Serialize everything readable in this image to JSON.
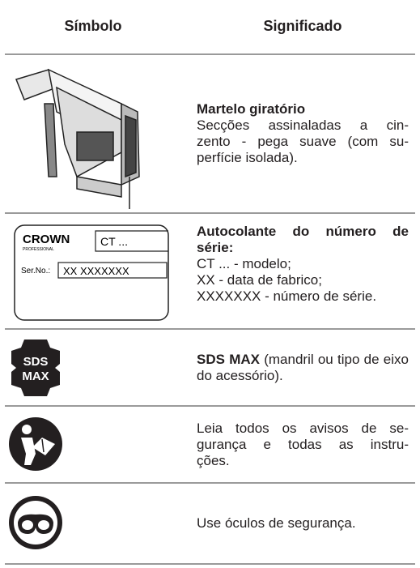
{
  "header": {
    "symbol": "Símbolo",
    "meaning": "Significado"
  },
  "rows": [
    {
      "title": "Martelo giratório",
      "lines": [
        "Secções assinaladas a cin-",
        "zento - pega suave (com su-",
        "perfície isolada)."
      ]
    },
    {
      "label": {
        "brand": "CROWN",
        "sub": "PROFESSIONAL",
        "model": "CT ...",
        "serial_caption": "Ser.No.:",
        "serial": "XX XXXXXXX"
      },
      "title": "Autocolante do número de série:",
      "lines": [
        "CT ... - modelo;",
        "XX - data de fabrico;",
        "XXXXXXX - número de série."
      ]
    },
    {
      "icon": {
        "line1": "SDS",
        "line2": "MAX"
      },
      "title": "SDS MAX",
      "text": "(mandril ou tipo de eixo do acessório)."
    },
    {
      "lines": [
        "Leia todos os avisos de se-",
        "gurança e todas as instru-",
        "ções."
      ]
    },
    {
      "lines": [
        "Use óculos de segurança."
      ]
    }
  ]
}
